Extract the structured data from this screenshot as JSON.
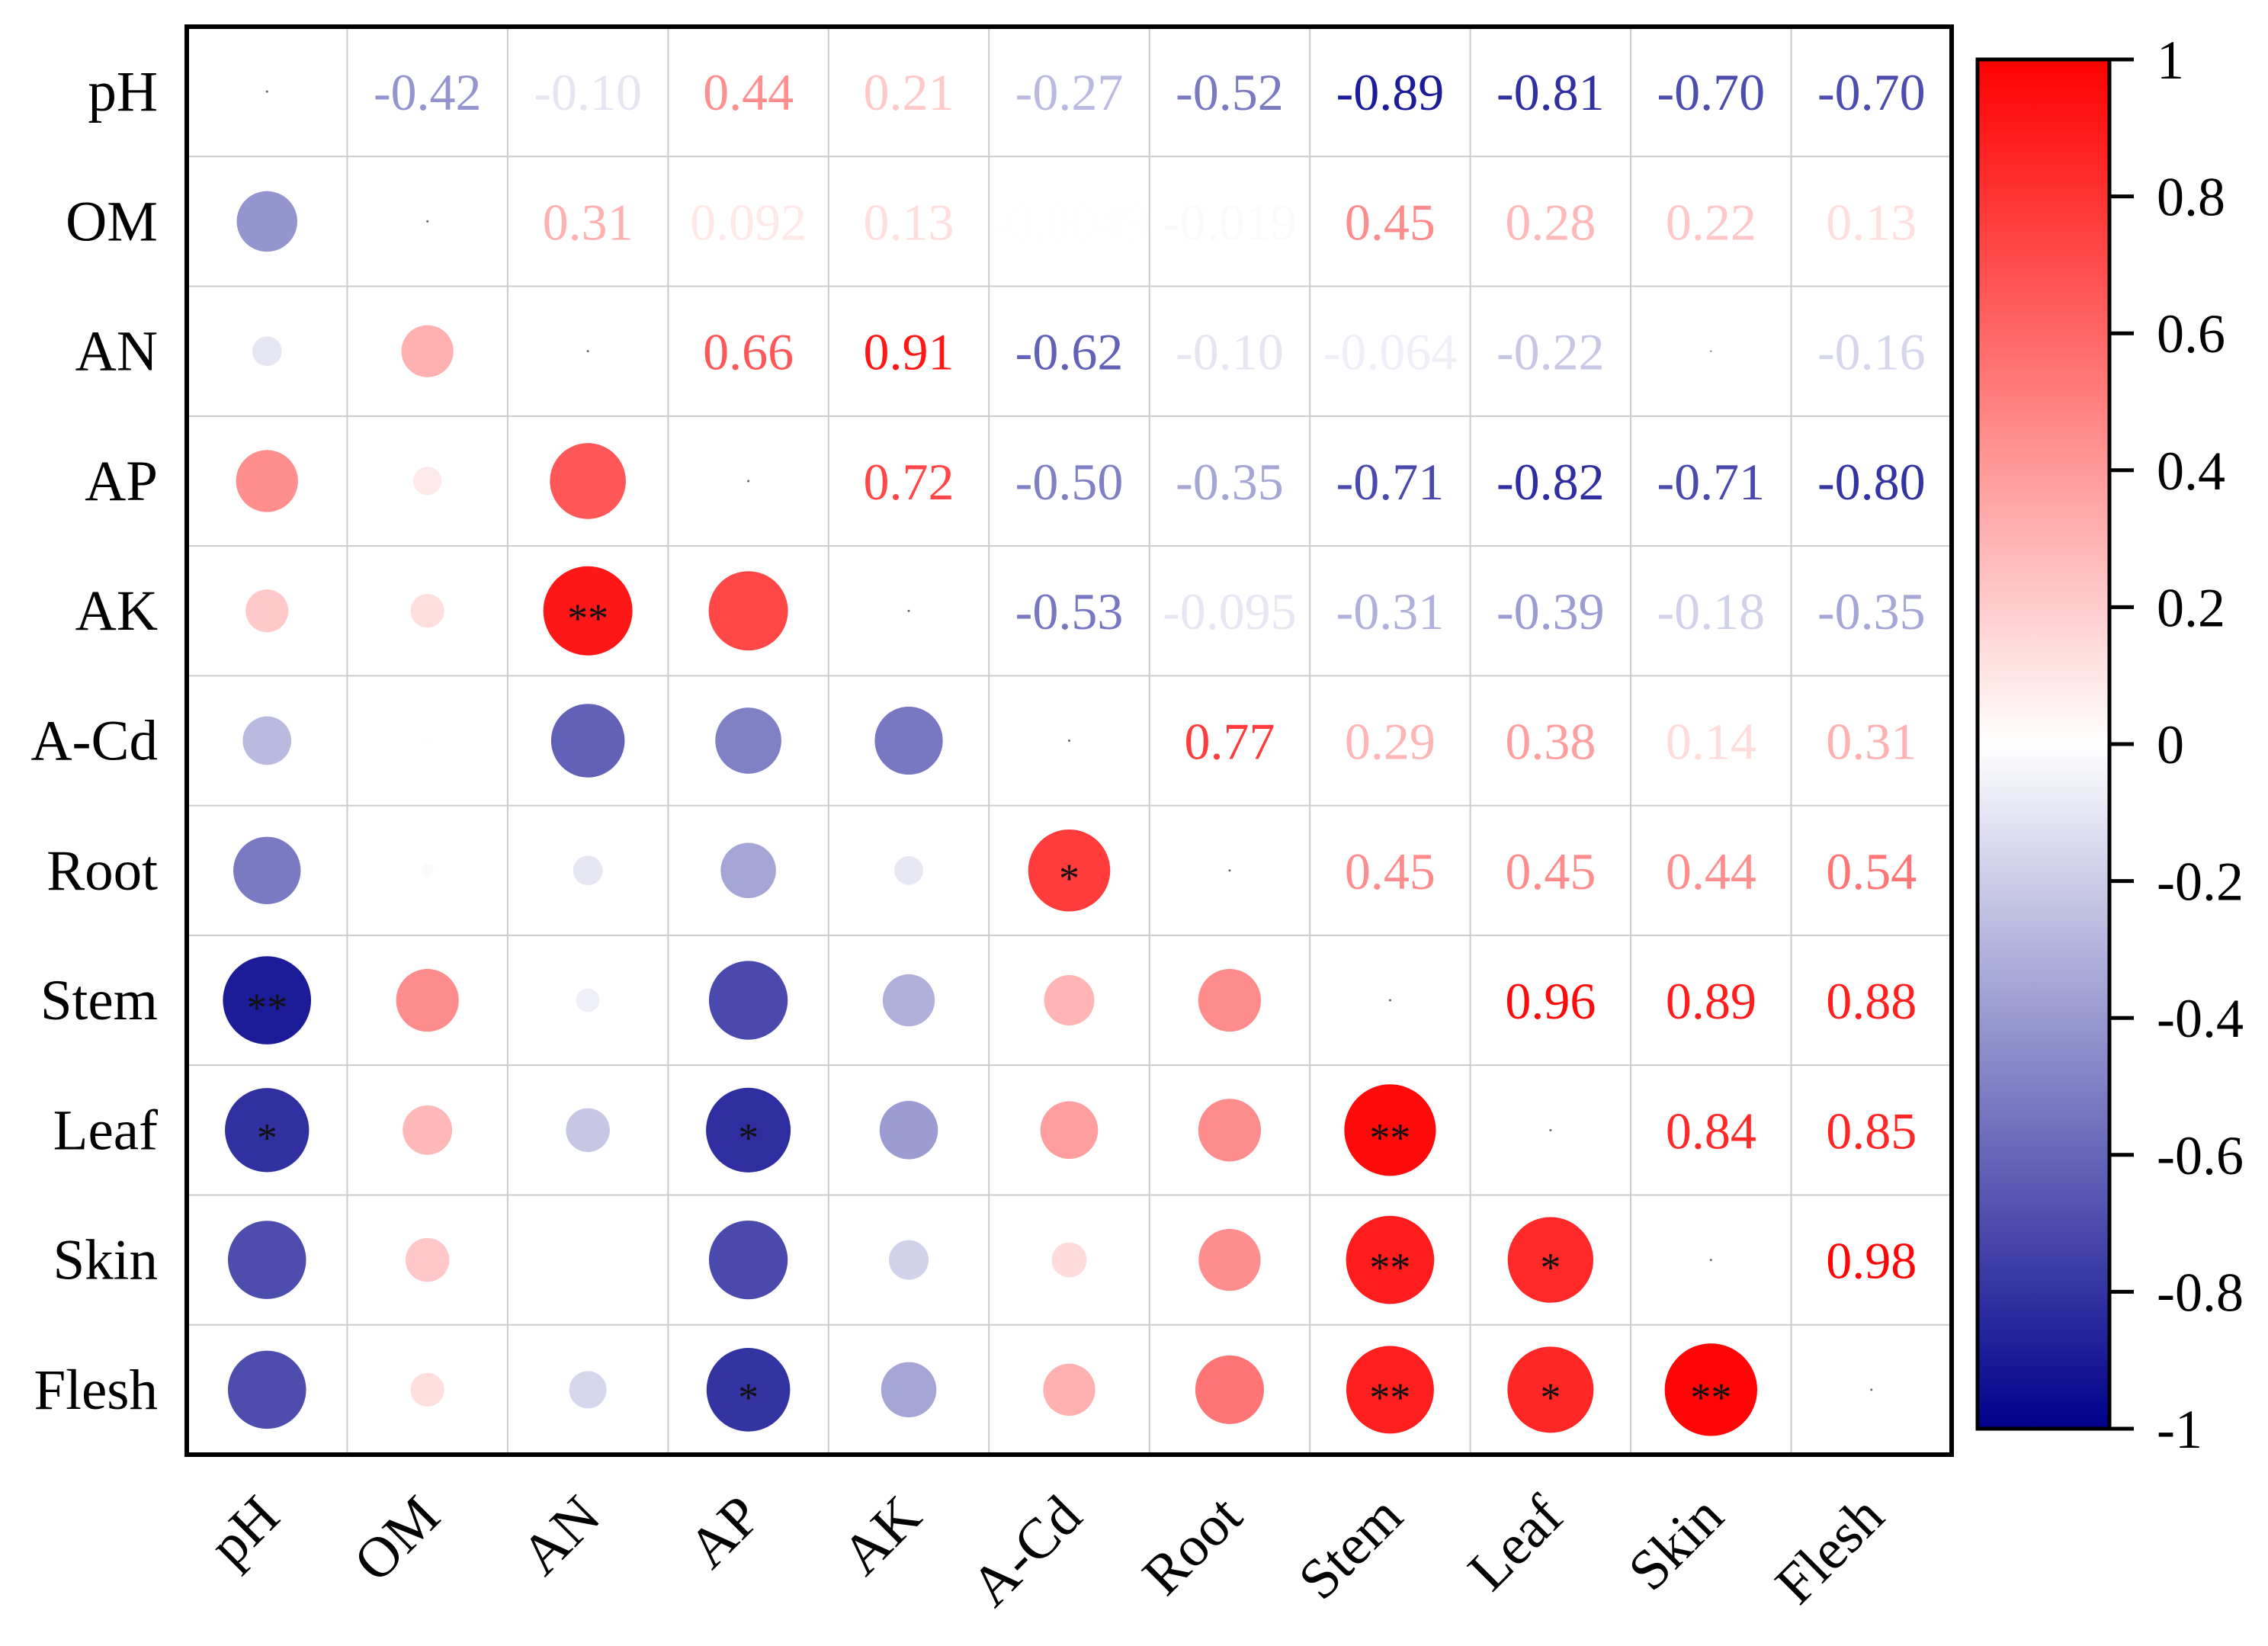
{
  "chart_data": {
    "type": "heatmap",
    "subtype": "correlation-matrix",
    "variables": [
      "pH",
      "OM",
      "AN",
      "AP",
      "AK",
      "A-Cd",
      "Root",
      "Stem",
      "Leaf",
      "Skin",
      "Flesh"
    ],
    "matrix": [
      [
        1,
        -0.42,
        -0.1,
        0.44,
        0.21,
        -0.27,
        -0.52,
        -0.89,
        -0.81,
        -0.7,
        -0.7
      ],
      [
        -0.42,
        1,
        0.31,
        0.092,
        0.13,
        -0.0049,
        -0.019,
        0.45,
        0.28,
        0.22,
        0.13
      ],
      [
        -0.1,
        0.31,
        1,
        0.66,
        0.91,
        -0.62,
        -0.1,
        -0.064,
        -0.22,
        0.0,
        -0.16
      ],
      [
        0.44,
        0.092,
        0.66,
        1,
        0.72,
        -0.5,
        -0.35,
        -0.71,
        -0.82,
        -0.71,
        -0.8
      ],
      [
        0.21,
        0.13,
        0.91,
        0.72,
        1,
        -0.53,
        -0.095,
        -0.31,
        -0.39,
        -0.18,
        -0.35
      ],
      [
        -0.27,
        -0.0049,
        -0.62,
        -0.5,
        -0.53,
        1,
        0.77,
        0.29,
        0.38,
        0.14,
        0.31
      ],
      [
        -0.52,
        -0.019,
        -0.1,
        -0.35,
        -0.095,
        0.77,
        1,
        0.45,
        0.45,
        0.44,
        0.54
      ],
      [
        -0.89,
        0.45,
        -0.064,
        -0.71,
        -0.31,
        0.29,
        0.45,
        1,
        0.96,
        0.89,
        0.88
      ],
      [
        -0.81,
        0.28,
        -0.22,
        -0.82,
        -0.39,
        0.38,
        0.45,
        0.96,
        1,
        0.84,
        0.85
      ],
      [
        -0.7,
        0.22,
        0.0,
        -0.71,
        -0.18,
        0.14,
        0.44,
        0.89,
        0.84,
        1,
        0.98
      ],
      [
        -0.7,
        0.13,
        -0.16,
        -0.8,
        -0.35,
        0.31,
        0.54,
        0.88,
        0.85,
        0.98,
        1
      ]
    ],
    "upper_labels": [
      [
        "",
        "-0.42",
        "-0.10",
        "0.44",
        "0.21",
        "-0.27",
        "-0.52",
        "-0.89",
        "-0.81",
        "-0.70",
        "-0.70"
      ],
      [
        "",
        "",
        "0.31",
        "0.092",
        "0.13",
        "-0.0049",
        "-0.019",
        "0.45",
        "0.28",
        "0.22",
        "0.13"
      ],
      [
        "",
        "",
        "",
        "0.66",
        "0.91",
        "-0.62",
        "-0.10",
        "-0.064",
        "-0.22",
        "",
        "-0.16"
      ],
      [
        "",
        "",
        "",
        "",
        "0.72",
        "-0.50",
        "-0.35",
        "-0.71",
        "-0.82",
        "-0.71",
        "-0.80"
      ],
      [
        "",
        "",
        "",
        "",
        "",
        "-0.53",
        "-0.095",
        "-0.31",
        "-0.39",
        "-0.18",
        "-0.35"
      ],
      [
        "",
        "",
        "",
        "",
        "",
        "",
        "0.77",
        "0.29",
        "0.38",
        "0.14",
        "0.31"
      ],
      [
        "",
        "",
        "",
        "",
        "",
        "",
        "",
        "0.45",
        "0.45",
        "0.44",
        "0.54"
      ],
      [
        "",
        "",
        "",
        "",
        "",
        "",
        "",
        "",
        "0.96",
        "0.89",
        "0.88"
      ],
      [
        "",
        "",
        "",
        "",
        "",
        "",
        "",
        "",
        "",
        "0.84",
        "0.85"
      ],
      [
        "",
        "",
        "",
        "",
        "",
        "",
        "",
        "",
        "",
        "",
        "0.98"
      ],
      [
        "",
        "",
        "",
        "",
        "",
        "",
        "",
        "",
        "",
        "",
        ""
      ]
    ],
    "significance_lower": [
      [
        "",
        "",
        "",
        "",
        "",
        "",
        "",
        "",
        "",
        "",
        ""
      ],
      [
        "",
        "",
        "",
        "",
        "",
        "",
        "",
        "",
        "",
        "",
        ""
      ],
      [
        "",
        "",
        "",
        "",
        "",
        "",
        "",
        "",
        "",
        "",
        ""
      ],
      [
        "",
        "",
        "",
        "",
        "",
        "",
        "",
        "",
        "",
        "",
        ""
      ],
      [
        "",
        "",
        "**",
        "",
        "",
        "",
        "",
        "",
        "",
        "",
        ""
      ],
      [
        "",
        "",
        "",
        "",
        "",
        "",
        "",
        "",
        "",
        "",
        ""
      ],
      [
        "",
        "",
        "",
        "",
        "",
        "*",
        "",
        "",
        "",
        "",
        ""
      ],
      [
        "**",
        "",
        "",
        "",
        "",
        "",
        "",
        "",
        "",
        "",
        ""
      ],
      [
        "*",
        "",
        "",
        "*",
        "",
        "",
        "",
        "**",
        "",
        "",
        ""
      ],
      [
        "",
        "",
        "",
        "",
        "",
        "",
        "",
        "**",
        "*",
        "",
        ""
      ],
      [
        "",
        "",
        "",
        "*",
        "",
        "",
        "",
        "**",
        "*",
        "**",
        ""
      ]
    ],
    "colorbar": {
      "range": [
        -1,
        1
      ],
      "ticks": [
        "1",
        "0.8",
        "0.6",
        "0.4",
        "0.2",
        "0",
        "-0.2",
        "-0.4",
        "-0.6",
        "-0.8",
        "-1"
      ],
      "low_color": "#00008b",
      "mid_color": "#ffffff",
      "high_color": "#ff0000"
    },
    "title": "",
    "xlabel": "",
    "ylabel": ""
  }
}
